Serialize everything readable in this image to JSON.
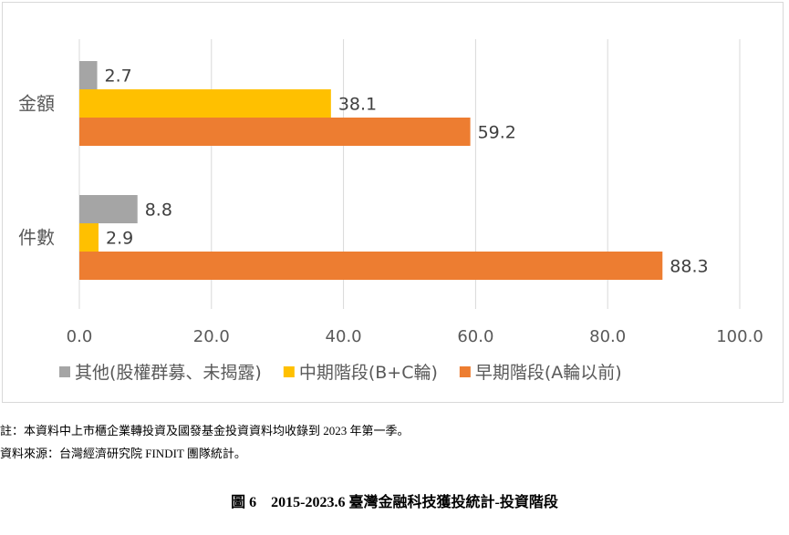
{
  "chart_data": {
    "type": "bar",
    "orientation": "horizontal",
    "categories": [
      "金額",
      "件數"
    ],
    "series": [
      {
        "name": "其他(股權群募、未揭露)",
        "color": "#a5a5a5",
        "values": [
          2.7,
          8.8
        ],
        "labels": [
          "2.7",
          "8.8"
        ]
      },
      {
        "name": "中期階段(B+C輪)",
        "color": "#ffc000",
        "values": [
          38.1,
          2.9
        ],
        "labels": [
          "38.1",
          "2.9"
        ]
      },
      {
        "name": "早期階段(A輪以前)",
        "color": "#ed7d31",
        "values": [
          59.2,
          88.3
        ],
        "labels": [
          "59.2",
          "88.3"
        ]
      }
    ],
    "xlim": [
      0,
      100
    ],
    "xticks": [
      "0.0",
      "20.0",
      "40.0",
      "60.0",
      "80.0",
      "100.0"
    ],
    "grid": true,
    "legend_position": "bottom"
  },
  "notes": {
    "line1": "註：本資料中上市櫃企業轉投資及國發基金投資資料均收錄到 2023 年第一季。",
    "line2": "資料來源：台灣經濟研究院 FINDIT 團隊統計。"
  },
  "caption": "圖 6　2015-2023.6 臺灣金融科技獲投統計-投資階段"
}
